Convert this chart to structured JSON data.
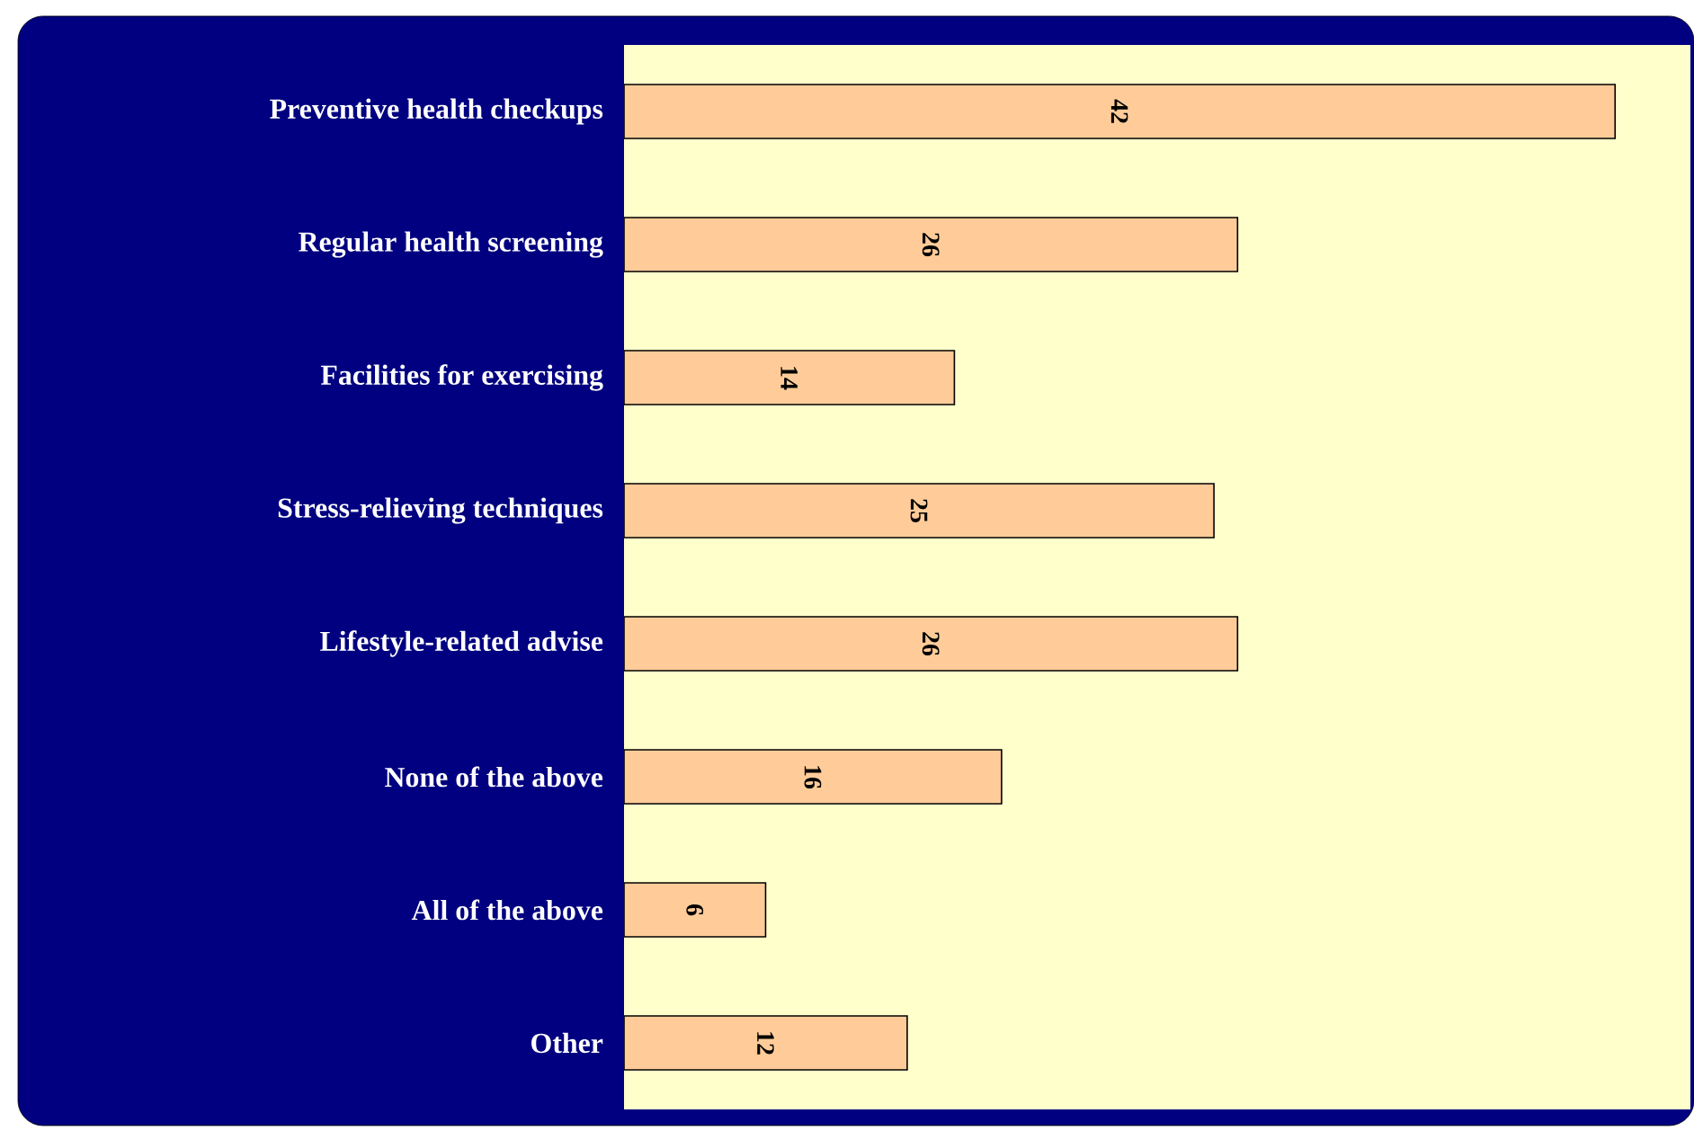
{
  "chart_data": {
    "type": "bar",
    "orientation": "horizontal",
    "categories": [
      "Preventive health checkups",
      "Regular health screening",
      "Facilities for exercising",
      "Stress-relieving techniques",
      "Lifestyle-related advise",
      "None of the above",
      "All of the above",
      "Other"
    ],
    "values": [
      42,
      26,
      14,
      25,
      26,
      16,
      6,
      12
    ],
    "color": "#ffcc99",
    "data_labels": true
  }
}
